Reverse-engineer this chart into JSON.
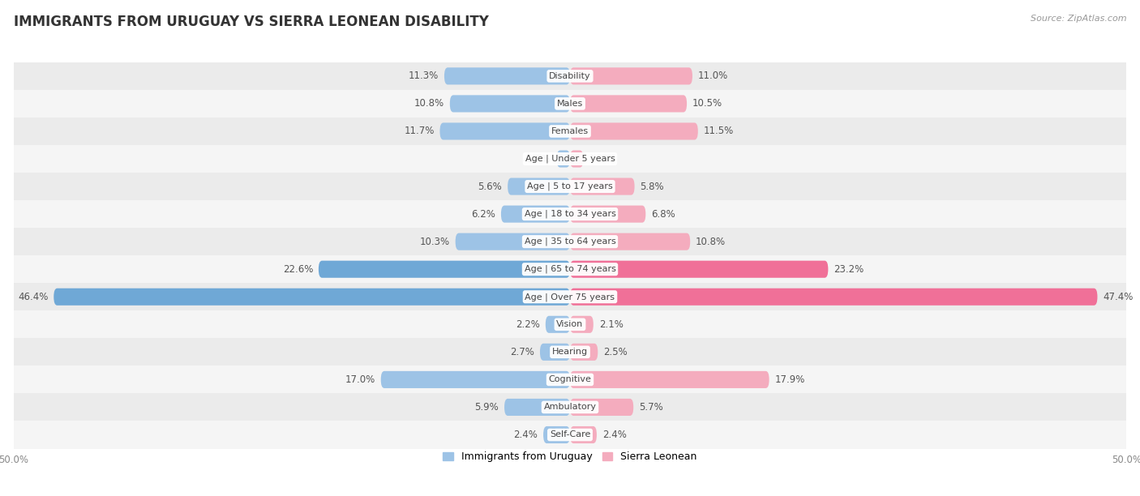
{
  "title": "IMMIGRANTS FROM URUGUAY VS SIERRA LEONEAN DISABILITY",
  "source": "Source: ZipAtlas.com",
  "categories": [
    "Disability",
    "Males",
    "Females",
    "Age | Under 5 years",
    "Age | 5 to 17 years",
    "Age | 18 to 34 years",
    "Age | 35 to 64 years",
    "Age | 65 to 74 years",
    "Age | Over 75 years",
    "Vision",
    "Hearing",
    "Cognitive",
    "Ambulatory",
    "Self-Care"
  ],
  "uruguay_values": [
    11.3,
    10.8,
    11.7,
    1.2,
    5.6,
    6.2,
    10.3,
    22.6,
    46.4,
    2.2,
    2.7,
    17.0,
    5.9,
    2.4
  ],
  "sierraleone_values": [
    11.0,
    10.5,
    11.5,
    1.2,
    5.8,
    6.8,
    10.8,
    23.2,
    47.4,
    2.1,
    2.5,
    17.9,
    5.7,
    2.4
  ],
  "uruguay_color": "#9DC3E6",
  "sierraleone_color": "#F4ACBE",
  "uruguay_color_large": "#6FA8D6",
  "sierraleone_color_large": "#F07098",
  "uruguay_label": "Immigrants from Uruguay",
  "sierraleone_label": "Sierra Leonean",
  "xlim": 50.0,
  "bg_color": "#ffffff",
  "row_color_odd": "#ebebeb",
  "row_color_even": "#f5f5f5",
  "title_fontsize": 12,
  "source_fontsize": 8,
  "tick_fontsize": 8.5,
  "label_fontsize": 8,
  "bar_height": 0.62
}
